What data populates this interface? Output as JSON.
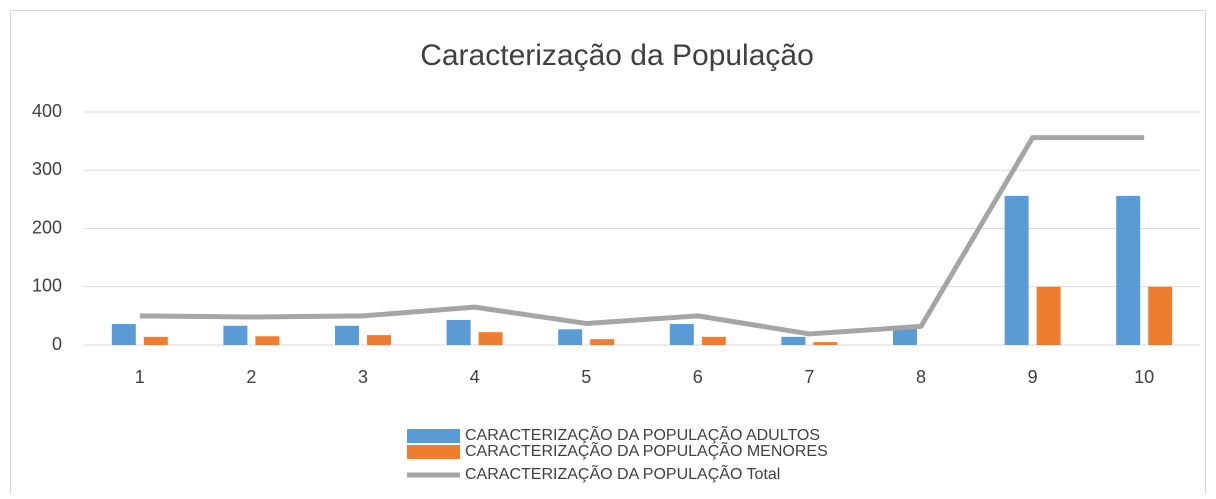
{
  "chart_data": {
    "type": "bar_line",
    "title": "Caracterização da População",
    "categories": [
      "1",
      "2",
      "3",
      "4",
      "5",
      "6",
      "7",
      "8",
      "9",
      "10"
    ],
    "series": [
      {
        "name": "CARACTERIZAÇÃO DA POPULAÇÃO ADULTOS",
        "type": "bar",
        "color": "#5b9bd5",
        "values": [
          36,
          33,
          33,
          43,
          27,
          36,
          14,
          32,
          256,
          256
        ]
      },
      {
        "name": "CARACTERIZAÇÃO DA POPULAÇÃO MENORES",
        "type": "bar",
        "color": "#ed7d31",
        "values": [
          14,
          15,
          17,
          22,
          10,
          14,
          5,
          0,
          100,
          100
        ]
      },
      {
        "name": "CARACTERIZAÇÃO DA POPULAÇÃO Total",
        "type": "line",
        "color": "#a5a5a5",
        "values": [
          50,
          48,
          50,
          65,
          37,
          50,
          19,
          32,
          356,
          356
        ]
      }
    ],
    "ylim": [
      0,
      400
    ],
    "yticks": [
      0,
      100,
      200,
      300,
      400
    ],
    "grid": true,
    "legend": "bottom"
  }
}
